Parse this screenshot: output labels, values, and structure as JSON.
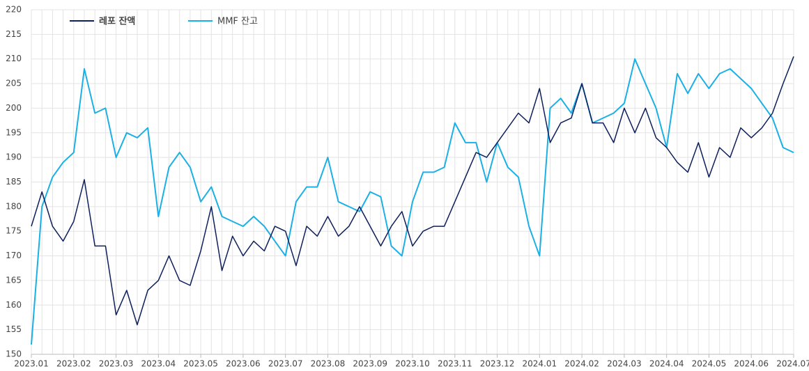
{
  "chart_data": {
    "type": "line",
    "categories": [
      "2023.01",
      null,
      null,
      null,
      "2023.02",
      null,
      null,
      null,
      "2023.03",
      null,
      null,
      null,
      "2023.04",
      null,
      null,
      null,
      "2023.05",
      null,
      null,
      null,
      "2023.06",
      null,
      null,
      null,
      "2023.07",
      null,
      null,
      null,
      "2023.08",
      null,
      null,
      null,
      "2023.09",
      null,
      null,
      null,
      "2023.10",
      null,
      null,
      null,
      "2023.11",
      null,
      null,
      null,
      "2023.12",
      null,
      null,
      null,
      "2024.01",
      null,
      null,
      null,
      "2024.02",
      null,
      null,
      null,
      "2024.03",
      null,
      null,
      null,
      "2024.04",
      null,
      null,
      null,
      "2024.05",
      null,
      null,
      null,
      "2024.06",
      null,
      null,
      null,
      "2024.07"
    ],
    "series": [
      {
        "name": "레포 잔액",
        "color": "#0d1f5c",
        "values": [
          176,
          183,
          176,
          173,
          177,
          185.5,
          172,
          172,
          158,
          163,
          156,
          163,
          165,
          170,
          165,
          164,
          171,
          180,
          167,
          174,
          170,
          173,
          171,
          176,
          175,
          168,
          176,
          174,
          178,
          174,
          176,
          180,
          176,
          172,
          176,
          179,
          172,
          175,
          176,
          176,
          181,
          186,
          191,
          190,
          193,
          196,
          199,
          197,
          204,
          193,
          197,
          198,
          205,
          197,
          197,
          193,
          200,
          195,
          200,
          194,
          192,
          189,
          187,
          193,
          186,
          192,
          190,
          196,
          194,
          196,
          199,
          205,
          210.5
        ]
      },
      {
        "name": "MMF 잔고",
        "color": "#1ab0e6",
        "values": [
          152,
          180,
          186,
          189,
          191,
          208,
          199,
          200,
          190,
          195,
          194,
          196,
          178,
          188,
          191,
          188,
          181,
          184,
          178,
          177,
          176,
          178,
          176,
          173,
          170,
          181,
          184,
          184,
          190,
          181,
          180,
          179,
          183,
          182,
          172,
          170,
          181,
          187,
          187,
          188,
          197,
          193,
          193,
          185,
          193,
          188,
          186,
          176,
          170,
          200,
          202,
          199,
          205,
          197,
          198,
          199,
          201,
          210,
          205,
          200,
          192,
          207,
          203,
          207,
          204,
          207,
          208,
          206,
          204,
          201,
          198,
          192,
          191
        ]
      }
    ],
    "ylim": [
      150,
      220
    ],
    "yticks": [
      150,
      155,
      160,
      165,
      170,
      175,
      180,
      185,
      190,
      195,
      200,
      205,
      210,
      215,
      220
    ],
    "grid": true
  }
}
